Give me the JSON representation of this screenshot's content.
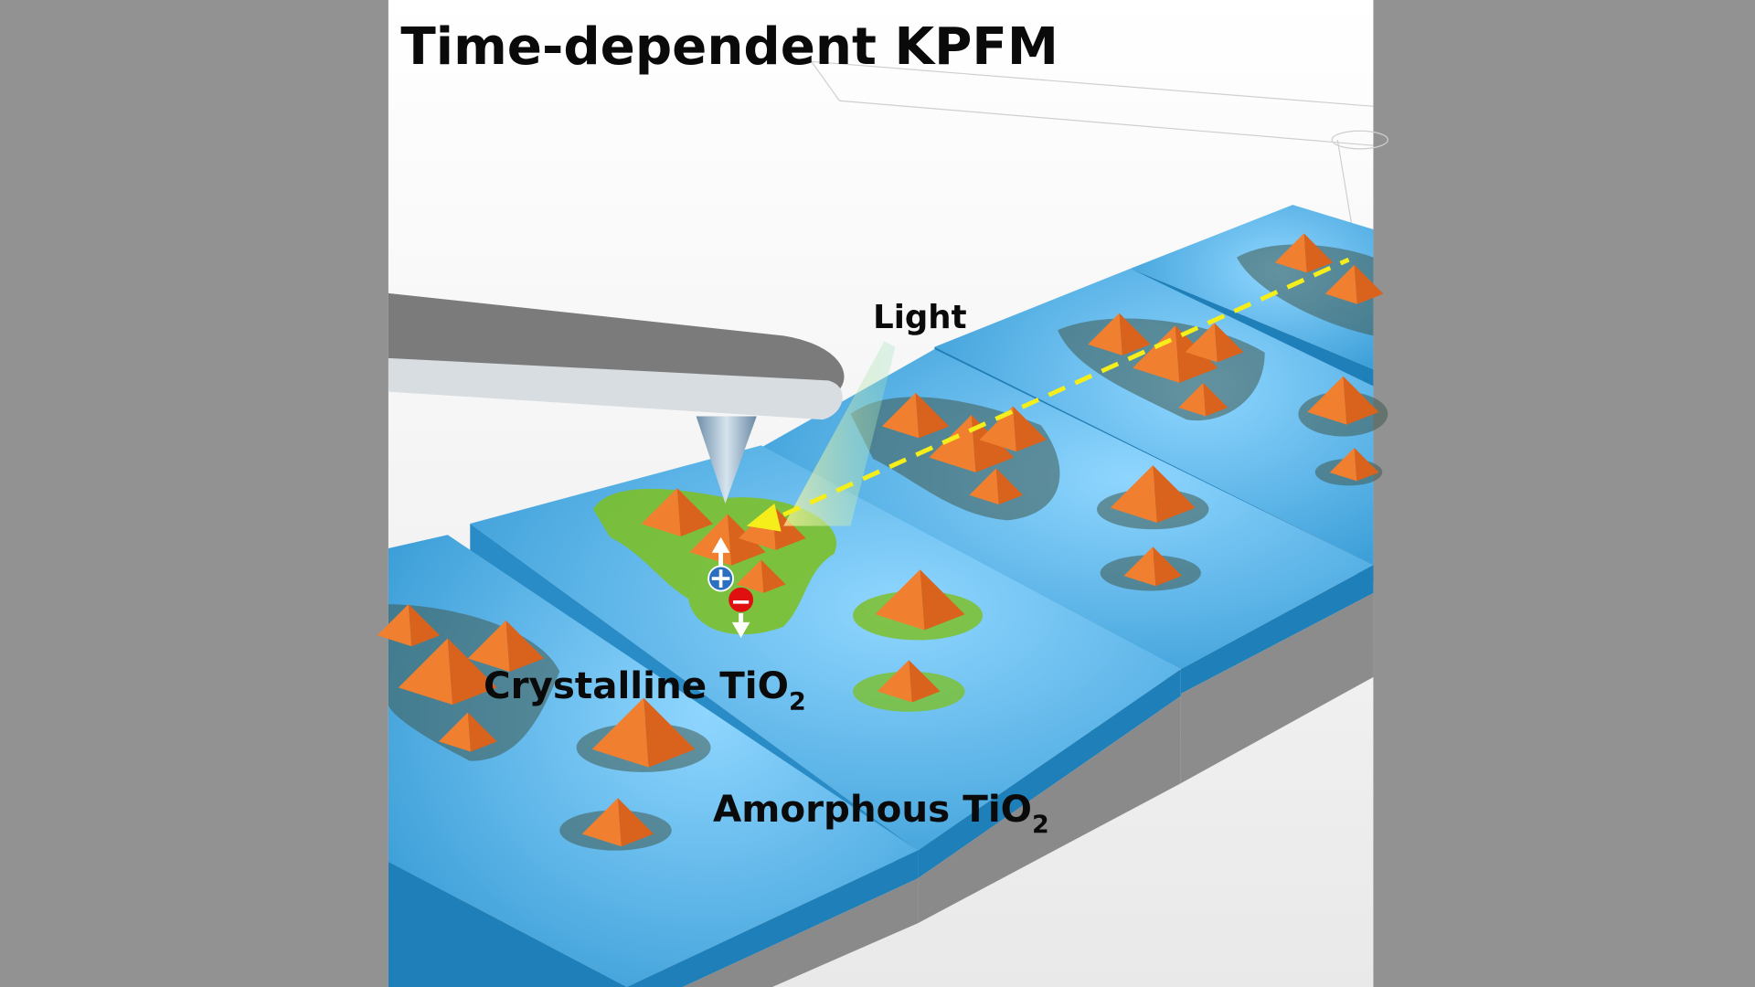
{
  "title": "Time-dependent KPFM",
  "labels": {
    "light": "Light",
    "crystalline": {
      "main": "Crystalline TiO",
      "sub": "2"
    },
    "amorphous": {
      "main": "Amorphous TiO",
      "sub": "2"
    }
  },
  "colors": {
    "background": "#929292",
    "substrate_top": "#4aa8e0",
    "substrate_side": "#1f7fb8",
    "base": "#8c8c8c",
    "crystal": "#f07a2a",
    "charge_region": "#7cc02a",
    "light_path": "#f5ee1a",
    "positive_charge": "#2a6fc0",
    "negative_charge": "#e01010"
  },
  "icons": [
    "cantilever",
    "kpfm-tip",
    "positive-charge-icon",
    "negative-charge-icon",
    "arrow-up-icon",
    "arrow-down-icon"
  ]
}
